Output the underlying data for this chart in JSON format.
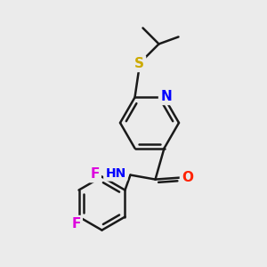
{
  "background_color": "#ebebeb",
  "bond_color": "#1a1a1a",
  "bond_width": 1.8,
  "atom_colors": {
    "N": "#0000ff",
    "O": "#ff2200",
    "S": "#ccaa00",
    "F": "#dd00dd",
    "C": "#1a1a1a",
    "H": "#444444"
  },
  "font_size": 10
}
